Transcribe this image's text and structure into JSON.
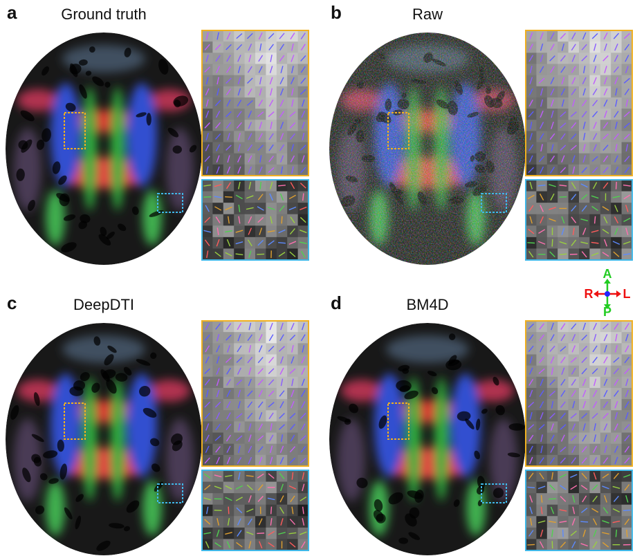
{
  "panels": [
    {
      "letter": "a",
      "title": "Ground truth"
    },
    {
      "letter": "b",
      "title": "Raw"
    },
    {
      "letter": "c",
      "title": "DeepDTI"
    },
    {
      "letter": "d",
      "title": "BM4D"
    }
  ],
  "orientation": {
    "anterior": "A",
    "posterior": "P",
    "right": "R",
    "left": "L"
  }
}
